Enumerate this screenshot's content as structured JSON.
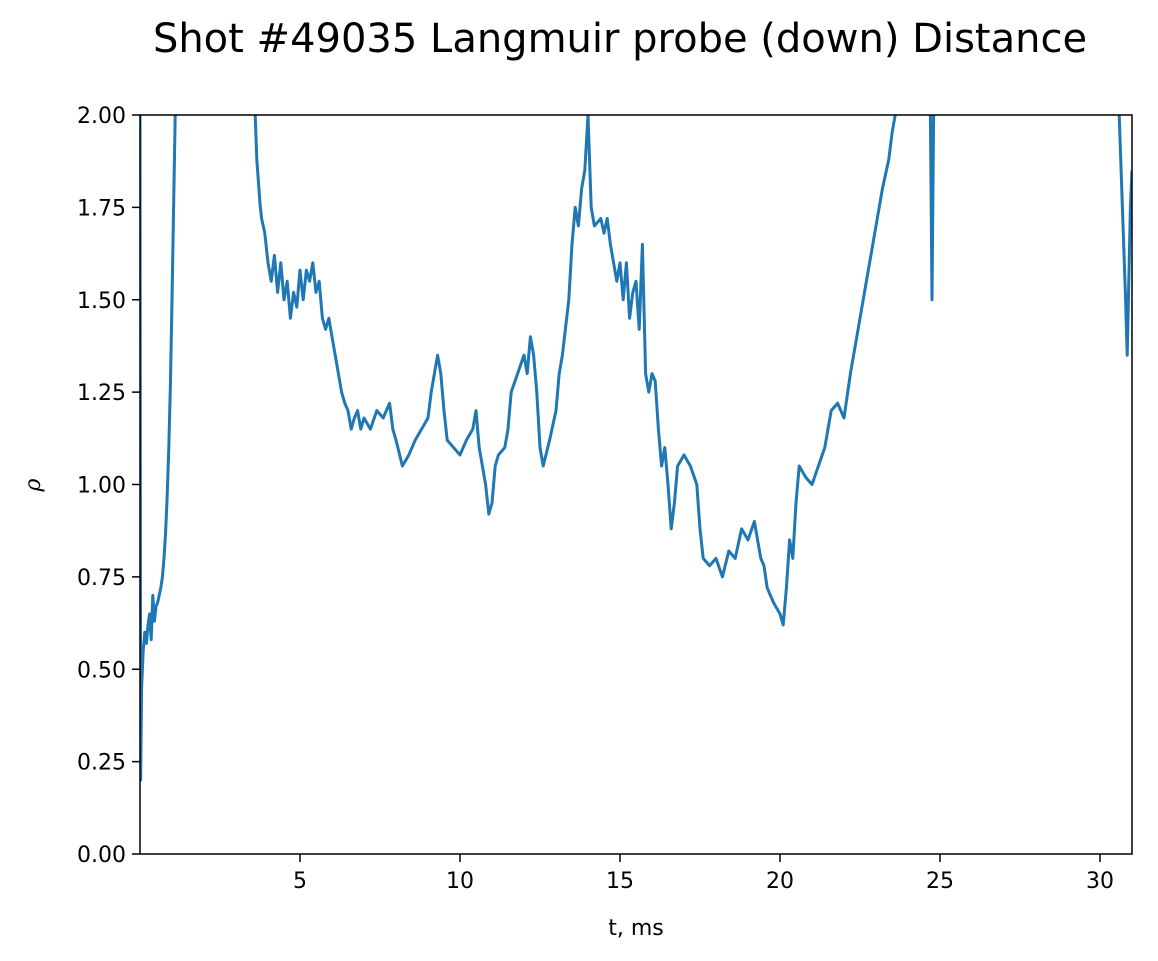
{
  "chart_data": {
    "type": "line",
    "title": "Shot #49035 Langmuir probe (down) Distance",
    "xlabel": "t, ms",
    "ylabel": "ρ",
    "xlim": [
      0,
      31
    ],
    "ylim": [
      0,
      2.0
    ],
    "xticks": [
      5,
      10,
      15,
      20,
      25,
      30
    ],
    "xtick_labels": [
      "5",
      "10",
      "15",
      "20",
      "25",
      "30"
    ],
    "yticks": [
      0,
      0.25,
      0.5,
      0.75,
      1.0,
      1.25,
      1.5,
      1.75,
      2.0
    ],
    "ytick_labels": [
      "0.00",
      "0.25",
      "0.50",
      "0.75",
      "1.00",
      "1.25",
      "1.50",
      "1.75",
      "2.00"
    ],
    "grid": false,
    "legend": "none",
    "colors": {
      "series": "#1f77b4",
      "axes": "#000000",
      "background": "#ffffff"
    },
    "series": [
      {
        "segments": [
          [
            [
              0.0,
              2.0
            ],
            [
              0.02,
              0.2
            ],
            [
              0.05,
              0.45
            ],
            [
              0.1,
              0.55
            ],
            [
              0.15,
              0.6
            ],
            [
              0.2,
              0.57
            ],
            [
              0.25,
              0.62
            ],
            [
              0.3,
              0.65
            ],
            [
              0.35,
              0.58
            ],
            [
              0.4,
              0.7
            ],
            [
              0.45,
              0.63
            ],
            [
              0.5,
              0.67
            ],
            [
              0.55,
              0.68
            ],
            [
              0.6,
              0.7
            ],
            [
              0.65,
              0.72
            ],
            [
              0.7,
              0.75
            ],
            [
              0.75,
              0.8
            ],
            [
              0.8,
              0.87
            ],
            [
              0.85,
              0.97
            ],
            [
              0.9,
              1.1
            ],
            [
              0.95,
              1.27
            ],
            [
              1.0,
              1.5
            ],
            [
              1.05,
              1.75
            ],
            [
              1.1,
              2.0
            ]
          ],
          [
            [
              3.6,
              2.0
            ],
            [
              3.65,
              1.88
            ],
            [
              3.7,
              1.82
            ],
            [
              3.75,
              1.76
            ],
            [
              3.8,
              1.72
            ],
            [
              3.9,
              1.68
            ],
            [
              4.0,
              1.6
            ],
            [
              4.1,
              1.55
            ],
            [
              4.2,
              1.62
            ],
            [
              4.3,
              1.52
            ],
            [
              4.4,
              1.6
            ],
            [
              4.5,
              1.5
            ],
            [
              4.6,
              1.55
            ],
            [
              4.7,
              1.45
            ],
            [
              4.8,
              1.52
            ],
            [
              4.9,
              1.48
            ],
            [
              5.0,
              1.58
            ],
            [
              5.1,
              1.5
            ],
            [
              5.2,
              1.58
            ],
            [
              5.3,
              1.55
            ],
            [
              5.4,
              1.6
            ],
            [
              5.5,
              1.52
            ],
            [
              5.6,
              1.55
            ],
            [
              5.7,
              1.45
            ],
            [
              5.8,
              1.42
            ],
            [
              5.9,
              1.45
            ],
            [
              6.0,
              1.4
            ],
            [
              6.1,
              1.35
            ],
            [
              6.2,
              1.3
            ],
            [
              6.3,
              1.25
            ],
            [
              6.4,
              1.22
            ],
            [
              6.5,
              1.2
            ],
            [
              6.6,
              1.15
            ],
            [
              6.7,
              1.18
            ],
            [
              6.8,
              1.2
            ],
            [
              6.9,
              1.15
            ],
            [
              7.0,
              1.18
            ],
            [
              7.2,
              1.15
            ],
            [
              7.4,
              1.2
            ],
            [
              7.6,
              1.18
            ],
            [
              7.8,
              1.22
            ],
            [
              7.9,
              1.15
            ],
            [
              8.0,
              1.12
            ],
            [
              8.2,
              1.05
            ],
            [
              8.4,
              1.08
            ],
            [
              8.6,
              1.12
            ],
            [
              8.8,
              1.15
            ],
            [
              9.0,
              1.18
            ],
            [
              9.1,
              1.25
            ],
            [
              9.2,
              1.3
            ],
            [
              9.3,
              1.35
            ],
            [
              9.4,
              1.3
            ],
            [
              9.5,
              1.2
            ],
            [
              9.6,
              1.12
            ],
            [
              9.8,
              1.1
            ],
            [
              10.0,
              1.08
            ],
            [
              10.2,
              1.12
            ],
            [
              10.4,
              1.15
            ],
            [
              10.5,
              1.2
            ],
            [
              10.6,
              1.1
            ],
            [
              10.8,
              1.0
            ],
            [
              10.9,
              0.92
            ],
            [
              11.0,
              0.95
            ],
            [
              11.1,
              1.05
            ],
            [
              11.2,
              1.08
            ],
            [
              11.4,
              1.1
            ],
            [
              11.5,
              1.15
            ],
            [
              11.6,
              1.25
            ],
            [
              11.8,
              1.3
            ],
            [
              12.0,
              1.35
            ],
            [
              12.1,
              1.3
            ],
            [
              12.2,
              1.4
            ],
            [
              12.3,
              1.35
            ],
            [
              12.4,
              1.25
            ],
            [
              12.5,
              1.1
            ],
            [
              12.6,
              1.05
            ],
            [
              12.8,
              1.12
            ],
            [
              13.0,
              1.2
            ],
            [
              13.1,
              1.3
            ],
            [
              13.2,
              1.35
            ],
            [
              13.4,
              1.5
            ],
            [
              13.5,
              1.65
            ],
            [
              13.6,
              1.75
            ],
            [
              13.7,
              1.7
            ],
            [
              13.8,
              1.8
            ],
            [
              13.9,
              1.85
            ],
            [
              14.0,
              2.0
            ],
            [
              14.1,
              1.75
            ],
            [
              14.2,
              1.7
            ],
            [
              14.4,
              1.72
            ],
            [
              14.5,
              1.68
            ],
            [
              14.6,
              1.72
            ],
            [
              14.7,
              1.65
            ],
            [
              14.8,
              1.6
            ],
            [
              14.9,
              1.55
            ],
            [
              15.0,
              1.6
            ],
            [
              15.1,
              1.5
            ],
            [
              15.2,
              1.6
            ],
            [
              15.3,
              1.45
            ],
            [
              15.4,
              1.52
            ],
            [
              15.5,
              1.55
            ],
            [
              15.6,
              1.42
            ],
            [
              15.7,
              1.65
            ],
            [
              15.8,
              1.3
            ],
            [
              15.9,
              1.25
            ],
            [
              16.0,
              1.3
            ],
            [
              16.1,
              1.28
            ],
            [
              16.2,
              1.15
            ],
            [
              16.3,
              1.05
            ],
            [
              16.4,
              1.1
            ],
            [
              16.5,
              1.0
            ],
            [
              16.6,
              0.88
            ],
            [
              16.7,
              0.95
            ],
            [
              16.8,
              1.05
            ],
            [
              17.0,
              1.08
            ],
            [
              17.2,
              1.05
            ],
            [
              17.4,
              1.0
            ],
            [
              17.5,
              0.88
            ],
            [
              17.6,
              0.8
            ],
            [
              17.8,
              0.78
            ],
            [
              18.0,
              0.8
            ],
            [
              18.2,
              0.75
            ],
            [
              18.4,
              0.82
            ],
            [
              18.6,
              0.8
            ],
            [
              18.8,
              0.88
            ],
            [
              19.0,
              0.85
            ],
            [
              19.2,
              0.9
            ],
            [
              19.4,
              0.8
            ],
            [
              19.5,
              0.78
            ],
            [
              19.6,
              0.72
            ],
            [
              19.8,
              0.68
            ],
            [
              20.0,
              0.65
            ],
            [
              20.1,
              0.62
            ],
            [
              20.2,
              0.72
            ],
            [
              20.3,
              0.85
            ],
            [
              20.4,
              0.8
            ],
            [
              20.5,
              0.95
            ],
            [
              20.6,
              1.05
            ],
            [
              20.8,
              1.02
            ],
            [
              21.0,
              1.0
            ],
            [
              21.2,
              1.05
            ],
            [
              21.4,
              1.1
            ],
            [
              21.6,
              1.2
            ],
            [
              21.8,
              1.22
            ],
            [
              22.0,
              1.18
            ],
            [
              22.2,
              1.3
            ],
            [
              22.4,
              1.4
            ],
            [
              22.6,
              1.5
            ],
            [
              22.8,
              1.6
            ],
            [
              23.0,
              1.7
            ],
            [
              23.2,
              1.8
            ],
            [
              23.4,
              1.88
            ],
            [
              23.5,
              1.95
            ],
            [
              23.6,
              2.0
            ]
          ],
          [
            [
              24.7,
              2.0
            ],
            [
              24.75,
              1.5
            ],
            [
              24.8,
              2.0
            ]
          ],
          [
            [
              30.6,
              2.0
            ],
            [
              30.7,
              1.75
            ],
            [
              30.8,
              1.5
            ],
            [
              30.85,
              1.35
            ],
            [
              30.9,
              1.55
            ],
            [
              30.95,
              1.75
            ],
            [
              31.0,
              1.85
            ]
          ]
        ]
      }
    ]
  }
}
